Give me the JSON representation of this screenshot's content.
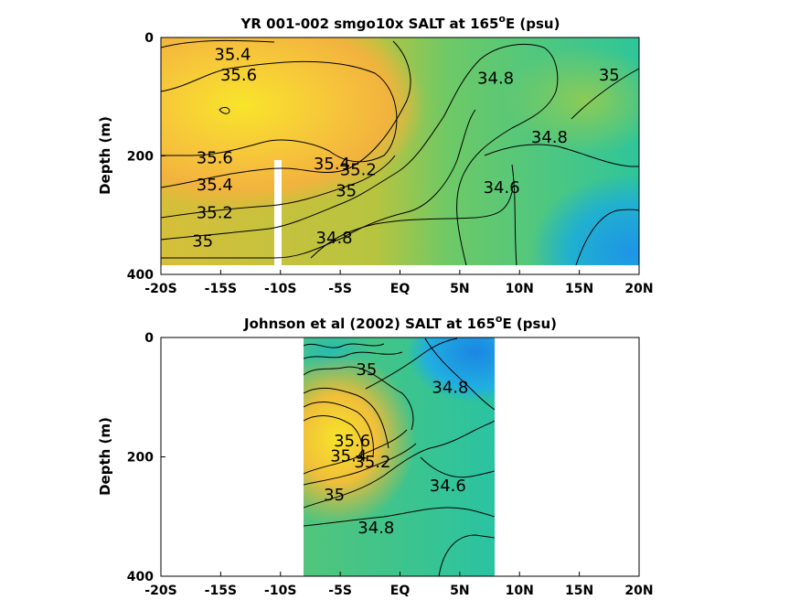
{
  "chart_data": [
    {
      "type": "heatmap",
      "title": "YR 001-002 smgo10x SALT at 165",
      "title_sup": "o",
      "title_suffix": "E (psu)",
      "ylabel": "Depth (m)",
      "xlim": [
        -20,
        20
      ],
      "ylim": [
        0,
        400
      ],
      "y_reversed": true,
      "x_ticks": [
        -20,
        -15,
        -10,
        -5,
        0,
        5,
        10,
        15,
        20
      ],
      "x_tick_labels": [
        "-20S",
        "-15S",
        "-10S",
        "-5S",
        "EQ",
        "5N",
        "10N",
        "15N",
        "20N"
      ],
      "y_ticks": [
        0,
        200,
        400
      ],
      "y_tick_labels": [
        "0",
        "200",
        "400"
      ],
      "data_extent": {
        "x": [
          -20,
          20
        ],
        "y": [
          0,
          380
        ]
      },
      "colorscale": [
        "#0f5edb",
        "#1f8ee8",
        "#20b4c8",
        "#3cc490",
        "#86cc5a",
        "#c4c13a",
        "#f4b43a",
        "#f8e12a"
      ],
      "salinity_range": [
        34.3,
        35.9
      ],
      "grid": false,
      "contour_labels": [
        {
          "text": "35.4",
          "x": -14,
          "y": 30
        },
        {
          "text": "35.6",
          "x": -13.5,
          "y": 65
        },
        {
          "text": "35.6",
          "x": -15.5,
          "y": 205
        },
        {
          "text": "35.4",
          "x": -15.5,
          "y": 250
        },
        {
          "text": "35.2",
          "x": -15.5,
          "y": 297
        },
        {
          "text": "35",
          "x": -16.5,
          "y": 345
        },
        {
          "text": "35.4",
          "x": -5.7,
          "y": 215
        },
        {
          "text": "35.2",
          "x": -3.5,
          "y": 225
        },
        {
          "text": "35",
          "x": -4.5,
          "y": 260
        },
        {
          "text": "34.8",
          "x": -5.5,
          "y": 340
        },
        {
          "text": "34.8",
          "x": 8.0,
          "y": 70
        },
        {
          "text": "35",
          "x": 17.5,
          "y": 65
        },
        {
          "text": "34.8",
          "x": 12.5,
          "y": 170
        },
        {
          "text": "34.6",
          "x": 8.5,
          "y": 255
        }
      ]
    },
    {
      "type": "heatmap",
      "title": "Johnson et al (2002) SALT at 165",
      "title_sup": "o",
      "title_suffix": "E (psu)",
      "ylabel": "Depth (m)",
      "xlim": [
        -20,
        20
      ],
      "ylim": [
        0,
        400
      ],
      "y_reversed": true,
      "x_ticks": [
        -20,
        -15,
        -10,
        -5,
        0,
        5,
        10,
        15,
        20
      ],
      "x_tick_labels": [
        "-20S",
        "-15S",
        "-10S",
        "-5S",
        "EQ",
        "5N",
        "10N",
        "15N",
        "20N"
      ],
      "y_ticks": [
        0,
        200,
        400
      ],
      "y_tick_labels": [
        "0",
        "200",
        "400"
      ],
      "data_extent": {
        "x": [
          -8,
          8
        ],
        "y": [
          0,
          400
        ]
      },
      "colorscale": [
        "#0f5edb",
        "#1f8ee8",
        "#20b4c8",
        "#3cc490",
        "#86cc5a",
        "#c4c13a",
        "#f4b43a",
        "#f8e12a"
      ],
      "salinity_range": [
        34.3,
        35.9
      ],
      "grid": false,
      "contour_labels": [
        {
          "text": "35",
          "x": -2.8,
          "y": 55
        },
        {
          "text": "34.8",
          "x": 4.2,
          "y": 85
        },
        {
          "text": "35.6",
          "x": -4.0,
          "y": 175
        },
        {
          "text": "35.4",
          "x": -4.3,
          "y": 200
        },
        {
          "text": "35.2",
          "x": -2.3,
          "y": 210
        },
        {
          "text": "35",
          "x": -5.5,
          "y": 265
        },
        {
          "text": "34.6",
          "x": 4.0,
          "y": 250
        },
        {
          "text": "34.8",
          "x": -2.0,
          "y": 320
        }
      ]
    }
  ]
}
